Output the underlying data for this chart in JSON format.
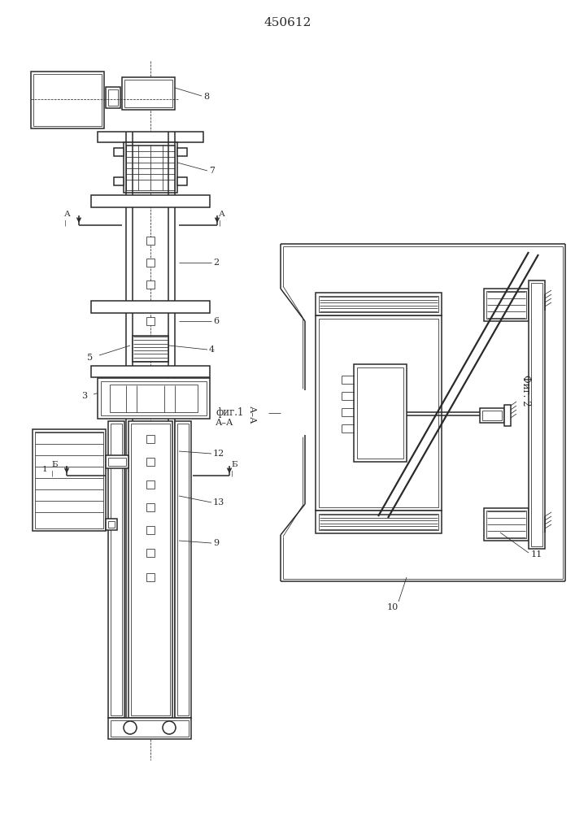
{
  "title": "450612",
  "fig1_label": "фиг.1",
  "fig2_label": "Фиг. 2",
  "bg_color": "#ffffff",
  "lc": "#2a2a2a",
  "lw": 1.1,
  "tlw": 0.55
}
